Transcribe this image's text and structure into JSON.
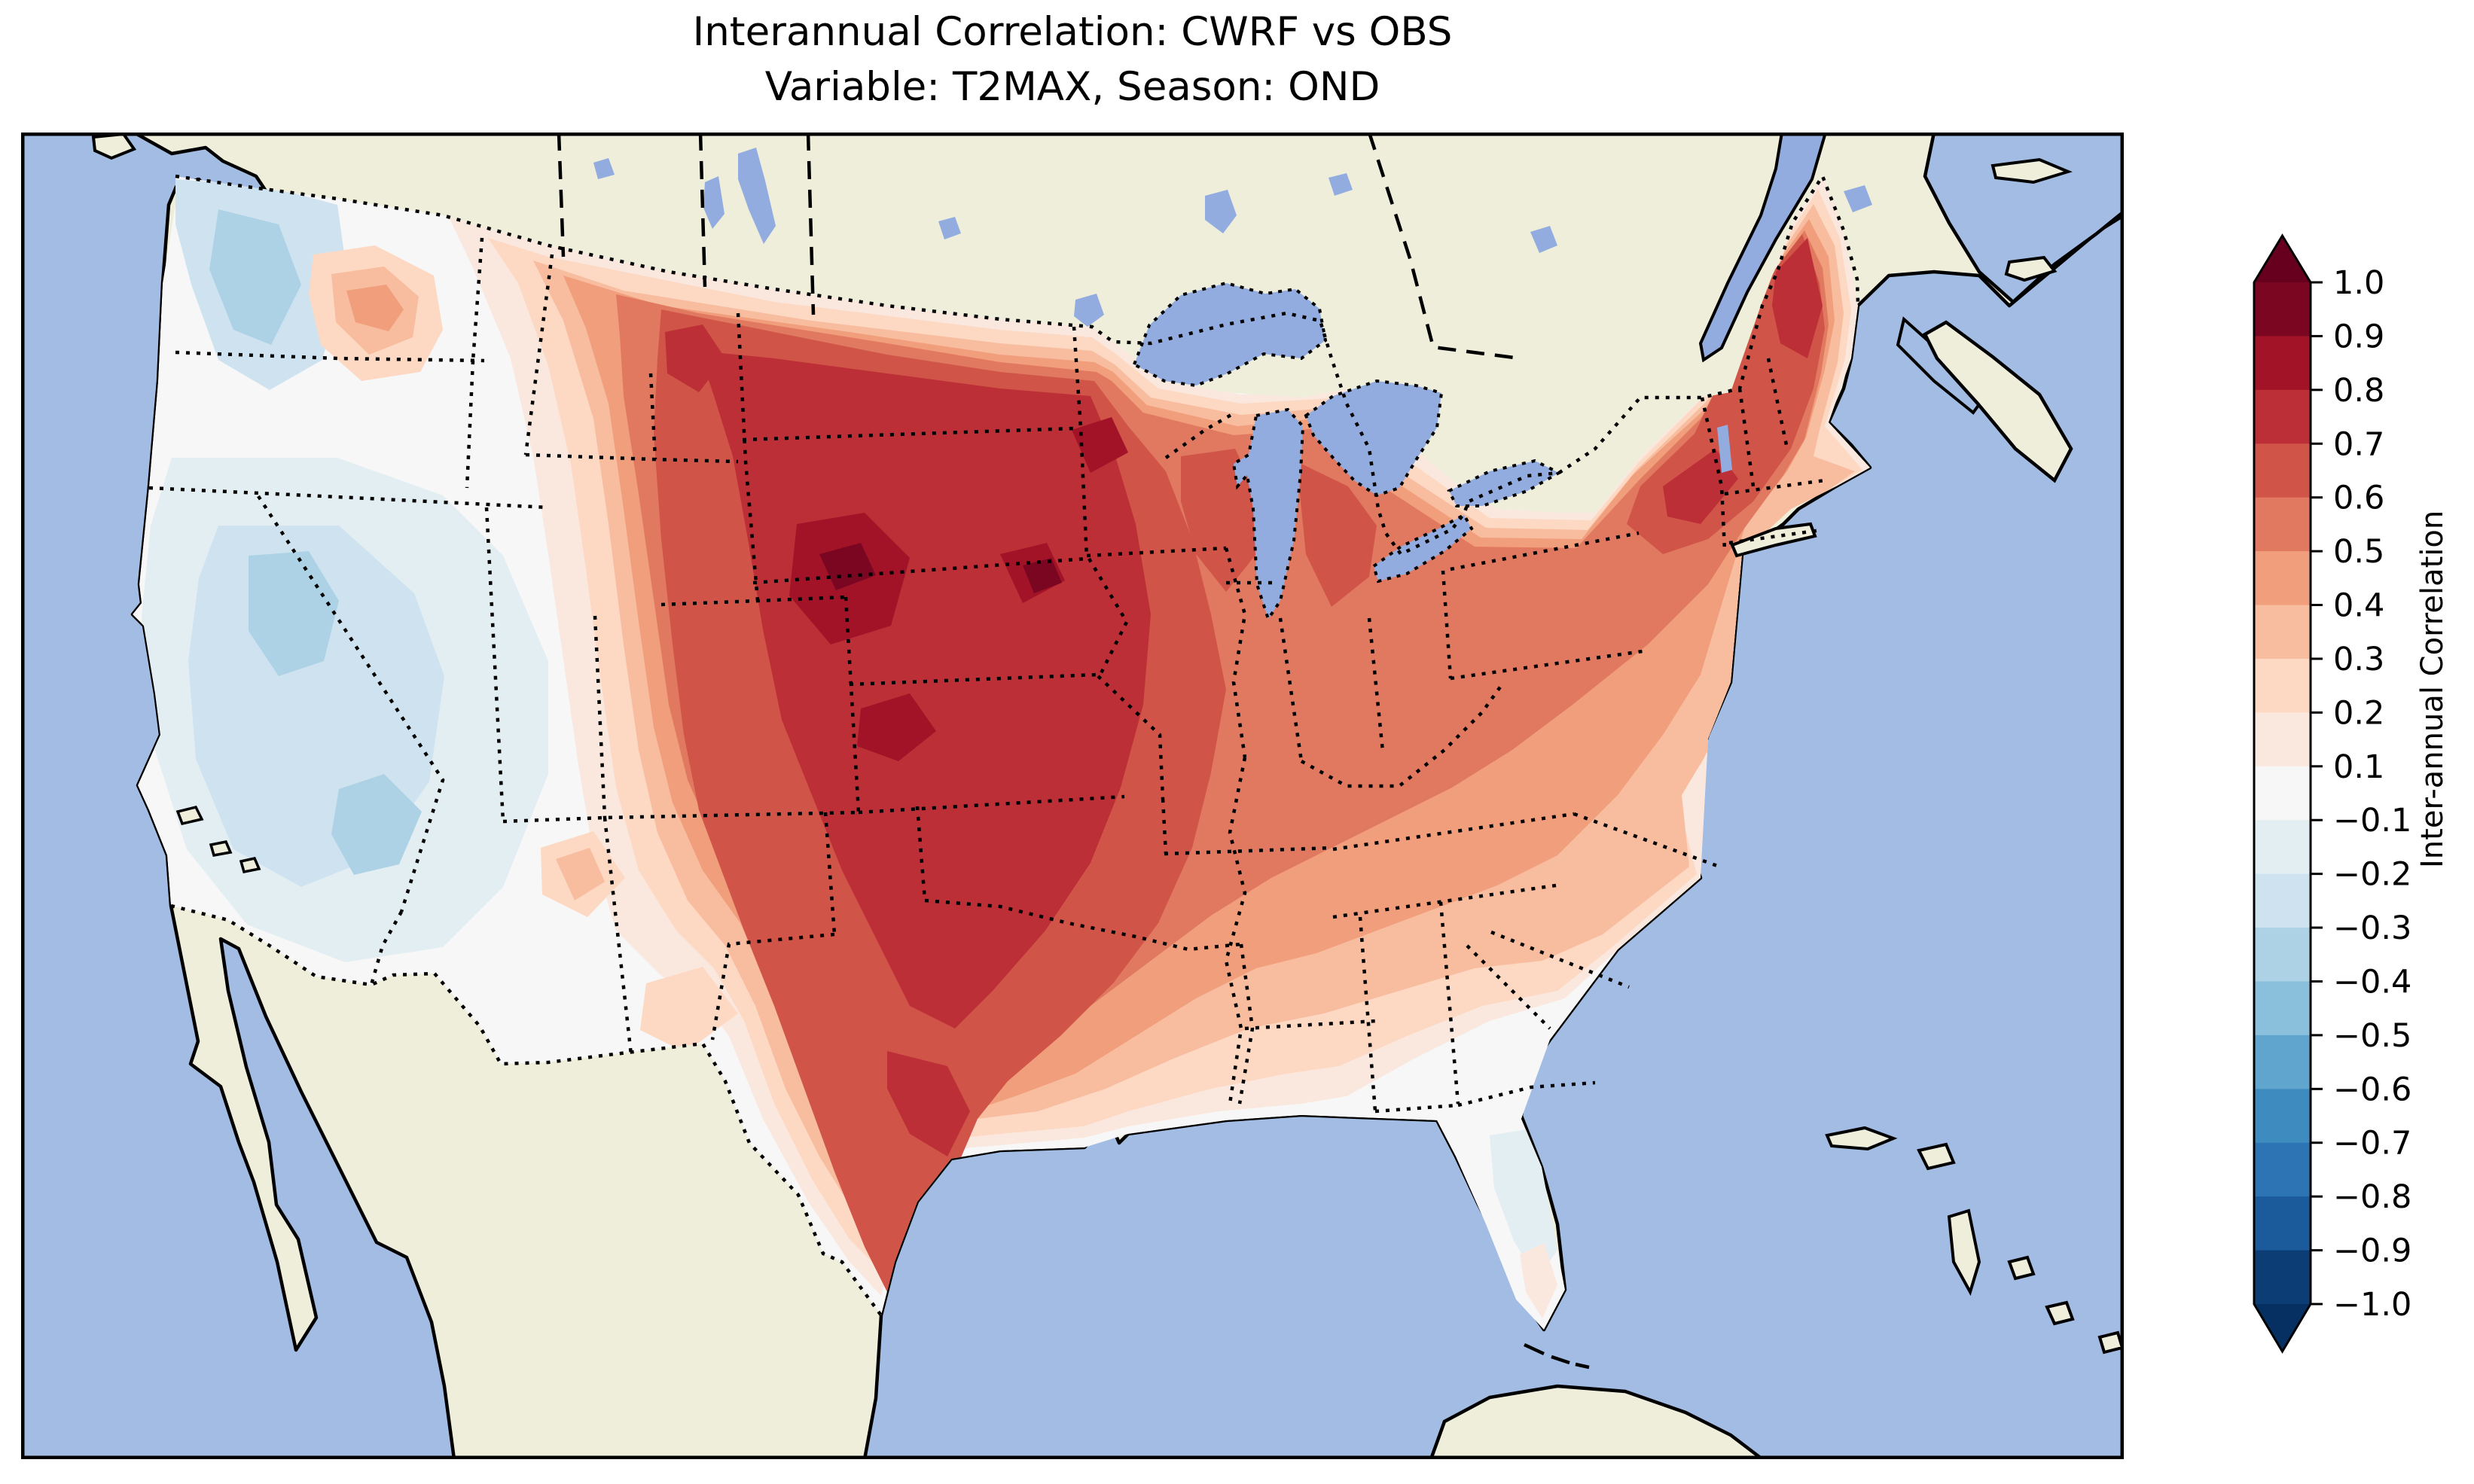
{
  "title": {
    "line1": "Interannual Correlation: CWRF vs OBS",
    "line2": "Variable: T2MAX, Season: OND"
  },
  "chart_data": {
    "type": "heatmap",
    "subtype": "filled_contour_map",
    "title": "Interannual Correlation: CWRF vs OBS",
    "subtitle": "Variable: T2MAX, Season: OND",
    "model": "CWRF",
    "reference": "OBS",
    "variable": "T2MAX",
    "season": "OND",
    "region": "Contiguous United States (CWRF model domain over North America)",
    "projection": "Lambert Conformal (approximate)",
    "grid": false,
    "legend_position": "right",
    "colorbar": {
      "label": "Inter-annual Correlation",
      "orientation": "vertical",
      "extend": "both",
      "ticks": [
        "1.0",
        "0.9",
        "0.8",
        "0.7",
        "0.6",
        "0.5",
        "0.4",
        "0.3",
        "0.2",
        "0.1",
        "−0.1",
        "−0.2",
        "−0.3",
        "−0.4",
        "−0.5",
        "−0.6",
        "−0.7",
        "−0.8",
        "−0.9",
        "−1.0"
      ],
      "levels": [
        -1.0,
        -0.9,
        -0.8,
        -0.7,
        -0.6,
        -0.5,
        -0.4,
        -0.3,
        -0.2,
        -0.1,
        0.1,
        0.2,
        0.3,
        0.4,
        0.5,
        0.6,
        0.7,
        0.8,
        0.9,
        1.0
      ],
      "range": [
        -1.0,
        1.0
      ],
      "over_color": "#67001f",
      "under_color": "#053061",
      "segments_top_to_bottom": [
        {
          "from": 0.9,
          "to": 1.0,
          "color": "#7b0622"
        },
        {
          "from": 0.8,
          "to": 0.9,
          "color": "#a21328"
        },
        {
          "from": 0.7,
          "to": 0.8,
          "color": "#bd2f36"
        },
        {
          "from": 0.6,
          "to": 0.7,
          "color": "#d05548"
        },
        {
          "from": 0.5,
          "to": 0.6,
          "color": "#e17961"
        },
        {
          "from": 0.4,
          "to": 0.5,
          "color": "#f19e7c"
        },
        {
          "from": 0.3,
          "to": 0.4,
          "color": "#f8bc9f"
        },
        {
          "from": 0.2,
          "to": 0.3,
          "color": "#fdd8c3"
        },
        {
          "from": 0.1,
          "to": 0.2,
          "color": "#fae8de"
        },
        {
          "from": -0.1,
          "to": 0.1,
          "color": "#f7f7f7"
        },
        {
          "from": -0.2,
          "to": -0.1,
          "color": "#e3eef3"
        },
        {
          "from": -0.3,
          "to": -0.2,
          "color": "#cee3ef"
        },
        {
          "from": -0.4,
          "to": -0.3,
          "color": "#add2e6"
        },
        {
          "from": -0.5,
          "to": -0.4,
          "color": "#8ac0db"
        },
        {
          "from": -0.6,
          "to": -0.5,
          "color": "#60a5cd"
        },
        {
          "from": -0.7,
          "to": -0.6,
          "color": "#3e8cbf"
        },
        {
          "from": -0.8,
          "to": -0.7,
          "color": "#2c74b3"
        },
        {
          "from": -0.9,
          "to": -0.8,
          "color": "#1b5b9c"
        },
        {
          "from": -1.0,
          "to": -0.9,
          "color": "#0c3e75"
        }
      ]
    },
    "palette": {
      "white": "#f7f7f7",
      "pink1": "#fae8de",
      "pink2": "#fdd8c3",
      "pink3": "#f8bc9f",
      "orange": "#f19e7c",
      "red1": "#e17961",
      "red2": "#d05548",
      "red3": "#bd2f36",
      "red4": "#a21328",
      "red5": "#7b0622",
      "blue1": "#e3eef3",
      "blue2": "#cee3ef",
      "blue3": "#add2e6",
      "ocean": "#a2bce3",
      "lake": "#93acdf",
      "land": "#eeeedb"
    },
    "map_readings_by_region": [
      {
        "region": "Pacific Northwest coast (W Washington / W Oregon)",
        "approx_correlation": "-0.3 to 0.1"
      },
      {
        "region": "Columbia Basin (E Washington / NE Oregon)",
        "approx_correlation": "0.2 to 0.5"
      },
      {
        "region": "California, Nevada, Great Basin",
        "approx_correlation": "-0.3 to 0.1"
      },
      {
        "region": "Arizona / New Mexico (scattered spots)",
        "approx_correlation": "0.1 to 0.3"
      },
      {
        "region": "Montana / Wyoming / Idaho (east)",
        "approx_correlation": "0.4 to 0.8"
      },
      {
        "region": "Northern & Central Plains (ND, SD, NE, KS, OK)",
        "approx_correlation": "0.6 to 0.9"
      },
      {
        "region": "Central Nebraska and NE/SD border spots (maximum)",
        "approx_correlation": "0.8 to 1.0"
      },
      {
        "region": "Upper Midwest (MN, IA, WI, MI)",
        "approx_correlation": "0.6 to 0.9"
      },
      {
        "region": "Texas (most of state)",
        "approx_correlation": "0.5 to 0.8"
      },
      {
        "region": "Lower Mississippi Valley (AR, LA, MS)",
        "approx_correlation": "0.3 to 0.6"
      },
      {
        "region": "Ohio Valley / Tennessee / Kentucky",
        "approx_correlation": "0.4 to 0.7"
      },
      {
        "region": "Southeast coastal plain (GA, SC, S Alabama)",
        "approx_correlation": "-0.1 to 0.3"
      },
      {
        "region": "Florida peninsula",
        "approx_correlation": "-0.2 to 0.2"
      },
      {
        "region": "Mid-Atlantic coast (VA, MD, NJ)",
        "approx_correlation": "0.3 to 0.6"
      },
      {
        "region": "Northeast (NY, New England)",
        "approx_correlation": "0.5 to 0.8"
      },
      {
        "region": "Maine",
        "approx_correlation": "0.6 to 0.9"
      }
    ],
    "basemap": {
      "ocean_color": "#a2bce3",
      "land_outside_domain_color": "#eeeedb",
      "lakes_color": "#93acdf",
      "coastline_color": "#000000",
      "state_borders_style": "dotted black",
      "country_borders_style": "dotted/dashed black"
    }
  }
}
